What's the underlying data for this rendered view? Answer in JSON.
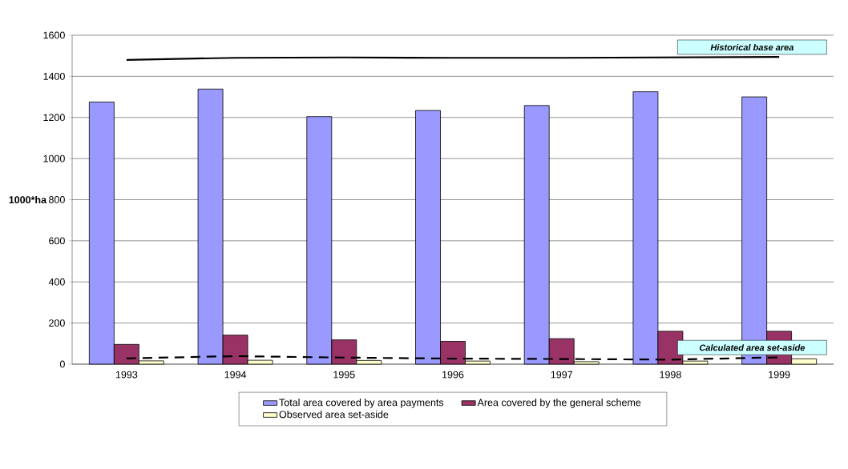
{
  "chart_data": {
    "type": "bar",
    "categories": [
      "1993",
      "1994",
      "1995",
      "1996",
      "1997",
      "1998",
      "1999"
    ],
    "ylabel": "1000*ha",
    "ylim": [
      0,
      1600
    ],
    "yticks": [
      0,
      200,
      400,
      600,
      800,
      1000,
      1200,
      1400,
      1600
    ],
    "grid": "y",
    "legend": "bottom",
    "series": [
      {
        "name": "Total area covered by area payments",
        "color": "#9999ff",
        "values": [
          1275,
          1338,
          1204,
          1234,
          1258,
          1325,
          1300
        ]
      },
      {
        "name": "Area covered by the general scheme",
        "color": "#993366",
        "values": [
          96,
          141,
          118,
          111,
          124,
          160,
          160
        ]
      },
      {
        "name": "Observed area set-aside",
        "color": "#ffffcc",
        "values": [
          16,
          19,
          18,
          15,
          12,
          15,
          26
        ]
      },
      {
        "type": "line",
        "color": "#000000",
        "line_style": "solid",
        "values": [
          1480,
          1490,
          1492,
          1490,
          1490,
          1492,
          1494
        ]
      },
      {
        "type": "line",
        "color": "#000000",
        "line_style": "dashed",
        "values": [
          28,
          39,
          32,
          27,
          25,
          22,
          33
        ]
      }
    ],
    "annotations": [
      {
        "text": "Historical base area",
        "x": "1999",
        "y": 1494
      },
      {
        "text": "Calculated area set-aside",
        "x": "1999",
        "y": 33
      }
    ]
  }
}
